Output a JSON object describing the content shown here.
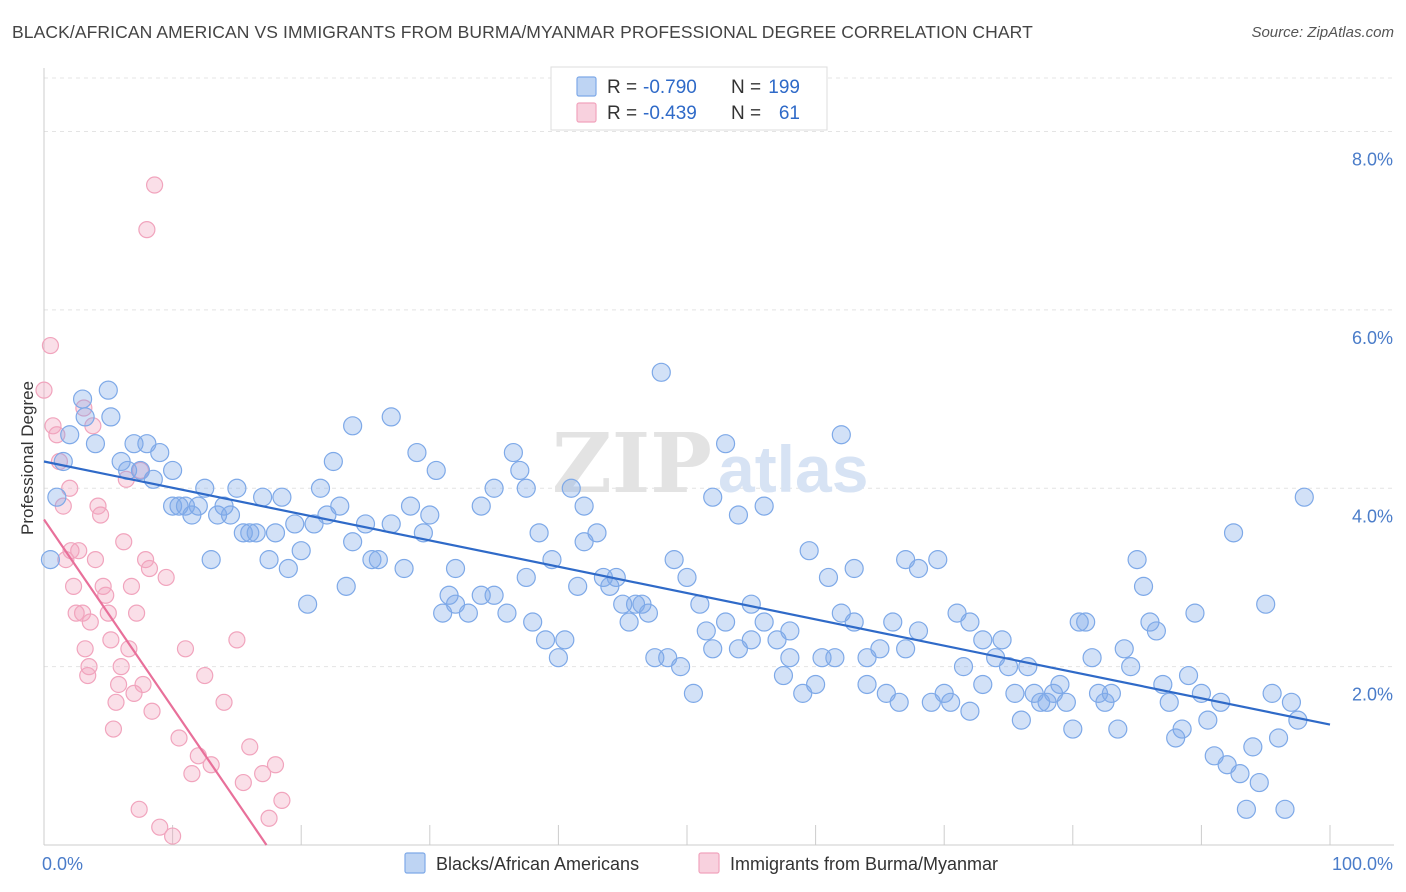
{
  "title": "BLACK/AFRICAN AMERICAN VS IMMIGRANTS FROM BURMA/MYANMAR PROFESSIONAL DEGREE CORRELATION CHART",
  "source": "Source: ZipAtlas.com",
  "watermark": {
    "zip": "ZIP",
    "atlas": "atlas"
  },
  "chart_data": {
    "type": "scatter",
    "ylabel": "Professional Degree",
    "xlim": [
      0,
      100
    ],
    "ylim": [
      0,
      8.6
    ],
    "x_ticks": [
      {
        "value": 0,
        "label": "0.0%"
      },
      {
        "value": 100,
        "label": "100.0%"
      }
    ],
    "y_ticks": [
      {
        "value": 2,
        "label": "2.0%"
      },
      {
        "value": 4,
        "label": "4.0%"
      },
      {
        "value": 6,
        "label": "6.0%"
      },
      {
        "value": 8,
        "label": "8.0%"
      }
    ],
    "grid": true,
    "legend_top": [
      {
        "r_label": "R = ",
        "r_value": "-0.790",
        "n_label": "N = ",
        "n_value": "199",
        "color": "#7ea9e8"
      },
      {
        "r_label": "R = ",
        "r_value": "-0.439",
        "n_label": "N = ",
        "n_value": "61",
        "color": "#f1a4bd"
      }
    ],
    "series": [
      {
        "name": "Blacks/African Americans",
        "color": "#7ea9e8",
        "line_color": "#2f6ac8",
        "trend": [
          [
            0,
            4.3
          ],
          [
            100,
            1.35
          ]
        ],
        "points": [
          [
            0.5,
            3.2
          ],
          [
            1,
            3.9
          ],
          [
            1.5,
            4.3
          ],
          [
            2,
            4.6
          ],
          [
            3,
            5.0
          ],
          [
            3.2,
            4.8
          ],
          [
            4,
            4.5
          ],
          [
            5,
            5.1
          ],
          [
            5.2,
            4.8
          ],
          [
            6,
            4.3
          ],
          [
            6.5,
            4.2
          ],
          [
            7,
            4.5
          ],
          [
            7.5,
            4.2
          ],
          [
            8,
            4.5
          ],
          [
            8.5,
            4.1
          ],
          [
            9,
            4.4
          ],
          [
            10,
            4.2
          ],
          [
            10,
            3.8
          ],
          [
            10.5,
            3.8
          ],
          [
            11,
            3.8
          ],
          [
            11.5,
            3.7
          ],
          [
            12,
            3.8
          ],
          [
            12.5,
            4.0
          ],
          [
            13,
            3.2
          ],
          [
            13.5,
            3.7
          ],
          [
            14,
            3.8
          ],
          [
            14.5,
            3.7
          ],
          [
            15,
            4.0
          ],
          [
            15.5,
            3.5
          ],
          [
            16,
            3.5
          ],
          [
            16.5,
            3.5
          ],
          [
            17,
            3.9
          ],
          [
            17.5,
            3.2
          ],
          [
            18,
            3.5
          ],
          [
            18.5,
            3.9
          ],
          [
            19,
            3.1
          ],
          [
            19.5,
            3.6
          ],
          [
            20,
            3.3
          ],
          [
            20.5,
            2.7
          ],
          [
            21,
            3.6
          ],
          [
            21.5,
            4.0
          ],
          [
            22,
            3.7
          ],
          [
            22.5,
            4.3
          ],
          [
            23,
            3.8
          ],
          [
            23.5,
            2.9
          ],
          [
            24,
            3.4
          ],
          [
            24,
            4.7
          ],
          [
            25,
            3.6
          ],
          [
            25.5,
            3.2
          ],
          [
            26,
            3.2
          ],
          [
            27,
            4.8
          ],
          [
            27,
            3.6
          ],
          [
            28,
            3.1
          ],
          [
            28.5,
            3.8
          ],
          [
            29,
            4.4
          ],
          [
            29.5,
            3.5
          ],
          [
            30,
            3.7
          ],
          [
            30.5,
            4.2
          ],
          [
            31,
            2.6
          ],
          [
            31.5,
            2.8
          ],
          [
            32,
            3.1
          ],
          [
            32,
            2.7
          ],
          [
            33,
            2.6
          ],
          [
            34,
            3.8
          ],
          [
            34,
            2.8
          ],
          [
            35,
            2.8
          ],
          [
            35,
            4.0
          ],
          [
            36,
            2.6
          ],
          [
            36.5,
            4.4
          ],
          [
            37,
            4.2
          ],
          [
            37.5,
            3.0
          ],
          [
            37.5,
            4.0
          ],
          [
            38,
            2.5
          ],
          [
            38.5,
            3.5
          ],
          [
            39,
            2.3
          ],
          [
            39.5,
            3.2
          ],
          [
            40,
            2.1
          ],
          [
            40.5,
            2.3
          ],
          [
            41,
            4.0
          ],
          [
            41.5,
            2.9
          ],
          [
            42,
            3.8
          ],
          [
            42,
            3.4
          ],
          [
            43,
            3.5
          ],
          [
            43.5,
            3.0
          ],
          [
            44,
            2.9
          ],
          [
            44.5,
            3.0
          ],
          [
            45,
            2.7
          ],
          [
            45.5,
            2.5
          ],
          [
            46,
            2.7
          ],
          [
            46.5,
            2.7
          ],
          [
            47,
            2.6
          ],
          [
            47.5,
            2.1
          ],
          [
            48,
            5.3
          ],
          [
            48.5,
            2.1
          ],
          [
            49,
            3.2
          ],
          [
            49.5,
            2.0
          ],
          [
            50,
            3.0
          ],
          [
            50.5,
            1.7
          ],
          [
            51,
            2.7
          ],
          [
            51.5,
            2.4
          ],
          [
            52,
            3.9
          ],
          [
            52,
            2.2
          ],
          [
            53,
            2.5
          ],
          [
            53,
            4.5
          ],
          [
            54,
            3.7
          ],
          [
            54,
            2.2
          ],
          [
            55,
            2.3
          ],
          [
            55,
            2.7
          ],
          [
            56,
            2.5
          ],
          [
            56,
            3.8
          ],
          [
            57,
            2.3
          ],
          [
            57.5,
            1.9
          ],
          [
            58,
            2.4
          ],
          [
            58,
            2.1
          ],
          [
            59,
            1.7
          ],
          [
            59.5,
            3.3
          ],
          [
            60,
            1.8
          ],
          [
            60.5,
            2.1
          ],
          [
            61,
            3.0
          ],
          [
            61.5,
            2.1
          ],
          [
            62,
            4.6
          ],
          [
            62,
            2.6
          ],
          [
            63,
            3.1
          ],
          [
            63,
            2.5
          ],
          [
            64,
            2.1
          ],
          [
            64,
            1.8
          ],
          [
            65,
            2.2
          ],
          [
            65.5,
            1.7
          ],
          [
            66,
            2.5
          ],
          [
            66.5,
            1.6
          ],
          [
            67,
            2.2
          ],
          [
            67,
            3.2
          ],
          [
            68,
            2.4
          ],
          [
            68,
            3.1
          ],
          [
            69,
            1.6
          ],
          [
            69.5,
            3.2
          ],
          [
            70,
            1.7
          ],
          [
            70.5,
            1.6
          ],
          [
            71,
            2.6
          ],
          [
            71.5,
            2.0
          ],
          [
            72,
            2.5
          ],
          [
            72,
            1.5
          ],
          [
            73,
            2.3
          ],
          [
            73,
            1.8
          ],
          [
            74,
            2.1
          ],
          [
            74.5,
            2.3
          ],
          [
            75,
            2.0
          ],
          [
            75.5,
            1.7
          ],
          [
            76,
            1.4
          ],
          [
            76.5,
            2.0
          ],
          [
            77,
            1.7
          ],
          [
            77.5,
            1.6
          ],
          [
            78,
            1.6
          ],
          [
            78.5,
            1.7
          ],
          [
            79,
            1.8
          ],
          [
            79.5,
            1.6
          ],
          [
            80,
            1.3
          ],
          [
            80.5,
            2.5
          ],
          [
            81,
            2.5
          ],
          [
            81.5,
            2.1
          ],
          [
            82,
            1.7
          ],
          [
            82.5,
            1.6
          ],
          [
            83,
            1.7
          ],
          [
            83.5,
            1.3
          ],
          [
            84,
            2.2
          ],
          [
            84.5,
            2.0
          ],
          [
            85,
            3.2
          ],
          [
            85.5,
            2.9
          ],
          [
            86,
            2.5
          ],
          [
            86.5,
            2.4
          ],
          [
            87,
            1.8
          ],
          [
            87.5,
            1.6
          ],
          [
            88,
            1.2
          ],
          [
            88.5,
            1.3
          ],
          [
            89,
            1.9
          ],
          [
            89.5,
            2.6
          ],
          [
            90,
            1.7
          ],
          [
            90.5,
            1.4
          ],
          [
            91,
            1.0
          ],
          [
            91.5,
            1.6
          ],
          [
            92,
            0.9
          ],
          [
            92.5,
            3.5
          ],
          [
            93,
            0.8
          ],
          [
            93.5,
            0.4
          ],
          [
            94,
            1.1
          ],
          [
            94.5,
            0.7
          ],
          [
            95,
            2.7
          ],
          [
            95.5,
            1.7
          ],
          [
            96,
            1.2
          ],
          [
            96.5,
            0.4
          ],
          [
            97,
            1.6
          ],
          [
            97.5,
            1.4
          ],
          [
            98,
            3.9
          ]
        ]
      },
      {
        "name": "Immigrants from Burma/Myanmar",
        "color": "#f1a4bd",
        "line_color": "#e8709a",
        "trend": [
          [
            0,
            3.65
          ],
          [
            17.3,
            0.0
          ]
        ],
        "points": [
          [
            0,
            5.1
          ],
          [
            0.5,
            5.6
          ],
          [
            0.7,
            4.7
          ],
          [
            1,
            4.6
          ],
          [
            1.2,
            4.3
          ],
          [
            1.5,
            3.8
          ],
          [
            1.7,
            3.2
          ],
          [
            2,
            4.0
          ],
          [
            2.1,
            3.3
          ],
          [
            2.3,
            2.9
          ],
          [
            2.5,
            2.6
          ],
          [
            2.7,
            3.3
          ],
          [
            3,
            2.6
          ],
          [
            3.1,
            4.9
          ],
          [
            3.2,
            2.2
          ],
          [
            3.4,
            1.9
          ],
          [
            3.5,
            2.0
          ],
          [
            3.6,
            2.5
          ],
          [
            3.8,
            4.7
          ],
          [
            4,
            3.2
          ],
          [
            4.2,
            3.8
          ],
          [
            4.4,
            3.7
          ],
          [
            4.6,
            2.9
          ],
          [
            4.8,
            2.8
          ],
          [
            5,
            2.6
          ],
          [
            5.2,
            2.3
          ],
          [
            5.4,
            1.3
          ],
          [
            5.6,
            1.6
          ],
          [
            5.8,
            1.8
          ],
          [
            6,
            2.0
          ],
          [
            6.2,
            3.4
          ],
          [
            6.4,
            4.1
          ],
          [
            6.6,
            2.2
          ],
          [
            6.8,
            2.9
          ],
          [
            7,
            1.7
          ],
          [
            7.2,
            2.6
          ],
          [
            7.4,
            0.4
          ],
          [
            7.5,
            4.2
          ],
          [
            7.7,
            1.8
          ],
          [
            7.9,
            3.2
          ],
          [
            8,
            6.9
          ],
          [
            8.2,
            3.1
          ],
          [
            8.4,
            1.5
          ],
          [
            8.6,
            7.4
          ],
          [
            9,
            0.2
          ],
          [
            9.5,
            3.0
          ],
          [
            10,
            0.1
          ],
          [
            10.5,
            1.2
          ],
          [
            11,
            2.2
          ],
          [
            11.5,
            0.8
          ],
          [
            12,
            1.0
          ],
          [
            12.5,
            1.9
          ],
          [
            13,
            0.9
          ],
          [
            14,
            1.6
          ],
          [
            15,
            2.3
          ],
          [
            15.5,
            0.7
          ],
          [
            16,
            1.1
          ],
          [
            17,
            0.8
          ],
          [
            17.5,
            0.3
          ],
          [
            18,
            0.9
          ],
          [
            18.5,
            0.5
          ]
        ]
      }
    ]
  }
}
